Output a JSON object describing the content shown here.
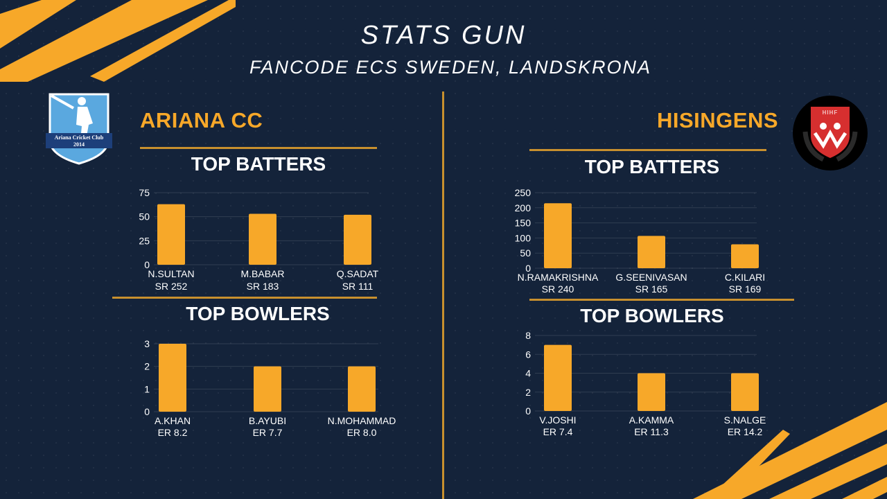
{
  "header": {
    "title": "STATS GUN",
    "subtitle": "FANCODE ECS SWEDEN, LANDSKRONA"
  },
  "colors": {
    "background": "#14233a",
    "accent": "#f7a829",
    "line": "#c8902e"
  },
  "left": {
    "team": "ARIANA CC",
    "logo": {
      "text_line1": "Ariana Cricket Club",
      "text_line2": "2014",
      "icon": "batsman-shield-icon"
    },
    "batters_title": "TOP BATTERS",
    "bowlers_title": "TOP BOWLERS"
  },
  "right": {
    "team": "HISINGENS",
    "logo": {
      "text": "HIHF",
      "icon": "red-shield-laurel-icon"
    },
    "batters_title": "TOP BATTERS",
    "bowlers_title": "TOP BOWLERS"
  },
  "chart_data": [
    {
      "type": "bar",
      "categories": [
        "N.SULTAN",
        "M.BABAR",
        "Q.SADAT"
      ],
      "sublabels": [
        "SR 252",
        "SR 183",
        "SR 111"
      ],
      "values": [
        63,
        53,
        52
      ],
      "yticks": [
        0,
        25,
        50,
        75
      ],
      "ylim": [
        0,
        75
      ],
      "color": "#f7a829"
    },
    {
      "type": "bar",
      "categories": [
        "A.KHAN",
        "B.AYUBI",
        "N.MOHAMMAD"
      ],
      "sublabels": [
        "ER 8.2",
        "ER 7.7",
        "ER 8.0"
      ],
      "values": [
        3,
        2,
        2
      ],
      "yticks": [
        0,
        1,
        2,
        3
      ],
      "ylim": [
        0,
        3
      ],
      "color": "#f7a829"
    },
    {
      "type": "bar",
      "categories": [
        "N.RAMAKRISHNA",
        "G.SEENIVASAN",
        "C.KILARI"
      ],
      "sublabels": [
        "SR 240",
        "SR 165",
        "SR 169"
      ],
      "values": [
        215,
        107,
        79
      ],
      "yticks": [
        0,
        50,
        100,
        150,
        200,
        250
      ],
      "ylim": [
        0,
        250
      ],
      "color": "#f7a829"
    },
    {
      "type": "bar",
      "categories": [
        "V.JOSHI",
        "A.KAMMA",
        "S.NALGE"
      ],
      "sublabels": [
        "ER 7.4",
        "ER 11.3",
        "ER 14.2"
      ],
      "values": [
        7,
        4,
        4
      ],
      "yticks": [
        0,
        2,
        4,
        6,
        8
      ],
      "ylim": [
        0,
        8
      ],
      "color": "#f7a829"
    }
  ]
}
